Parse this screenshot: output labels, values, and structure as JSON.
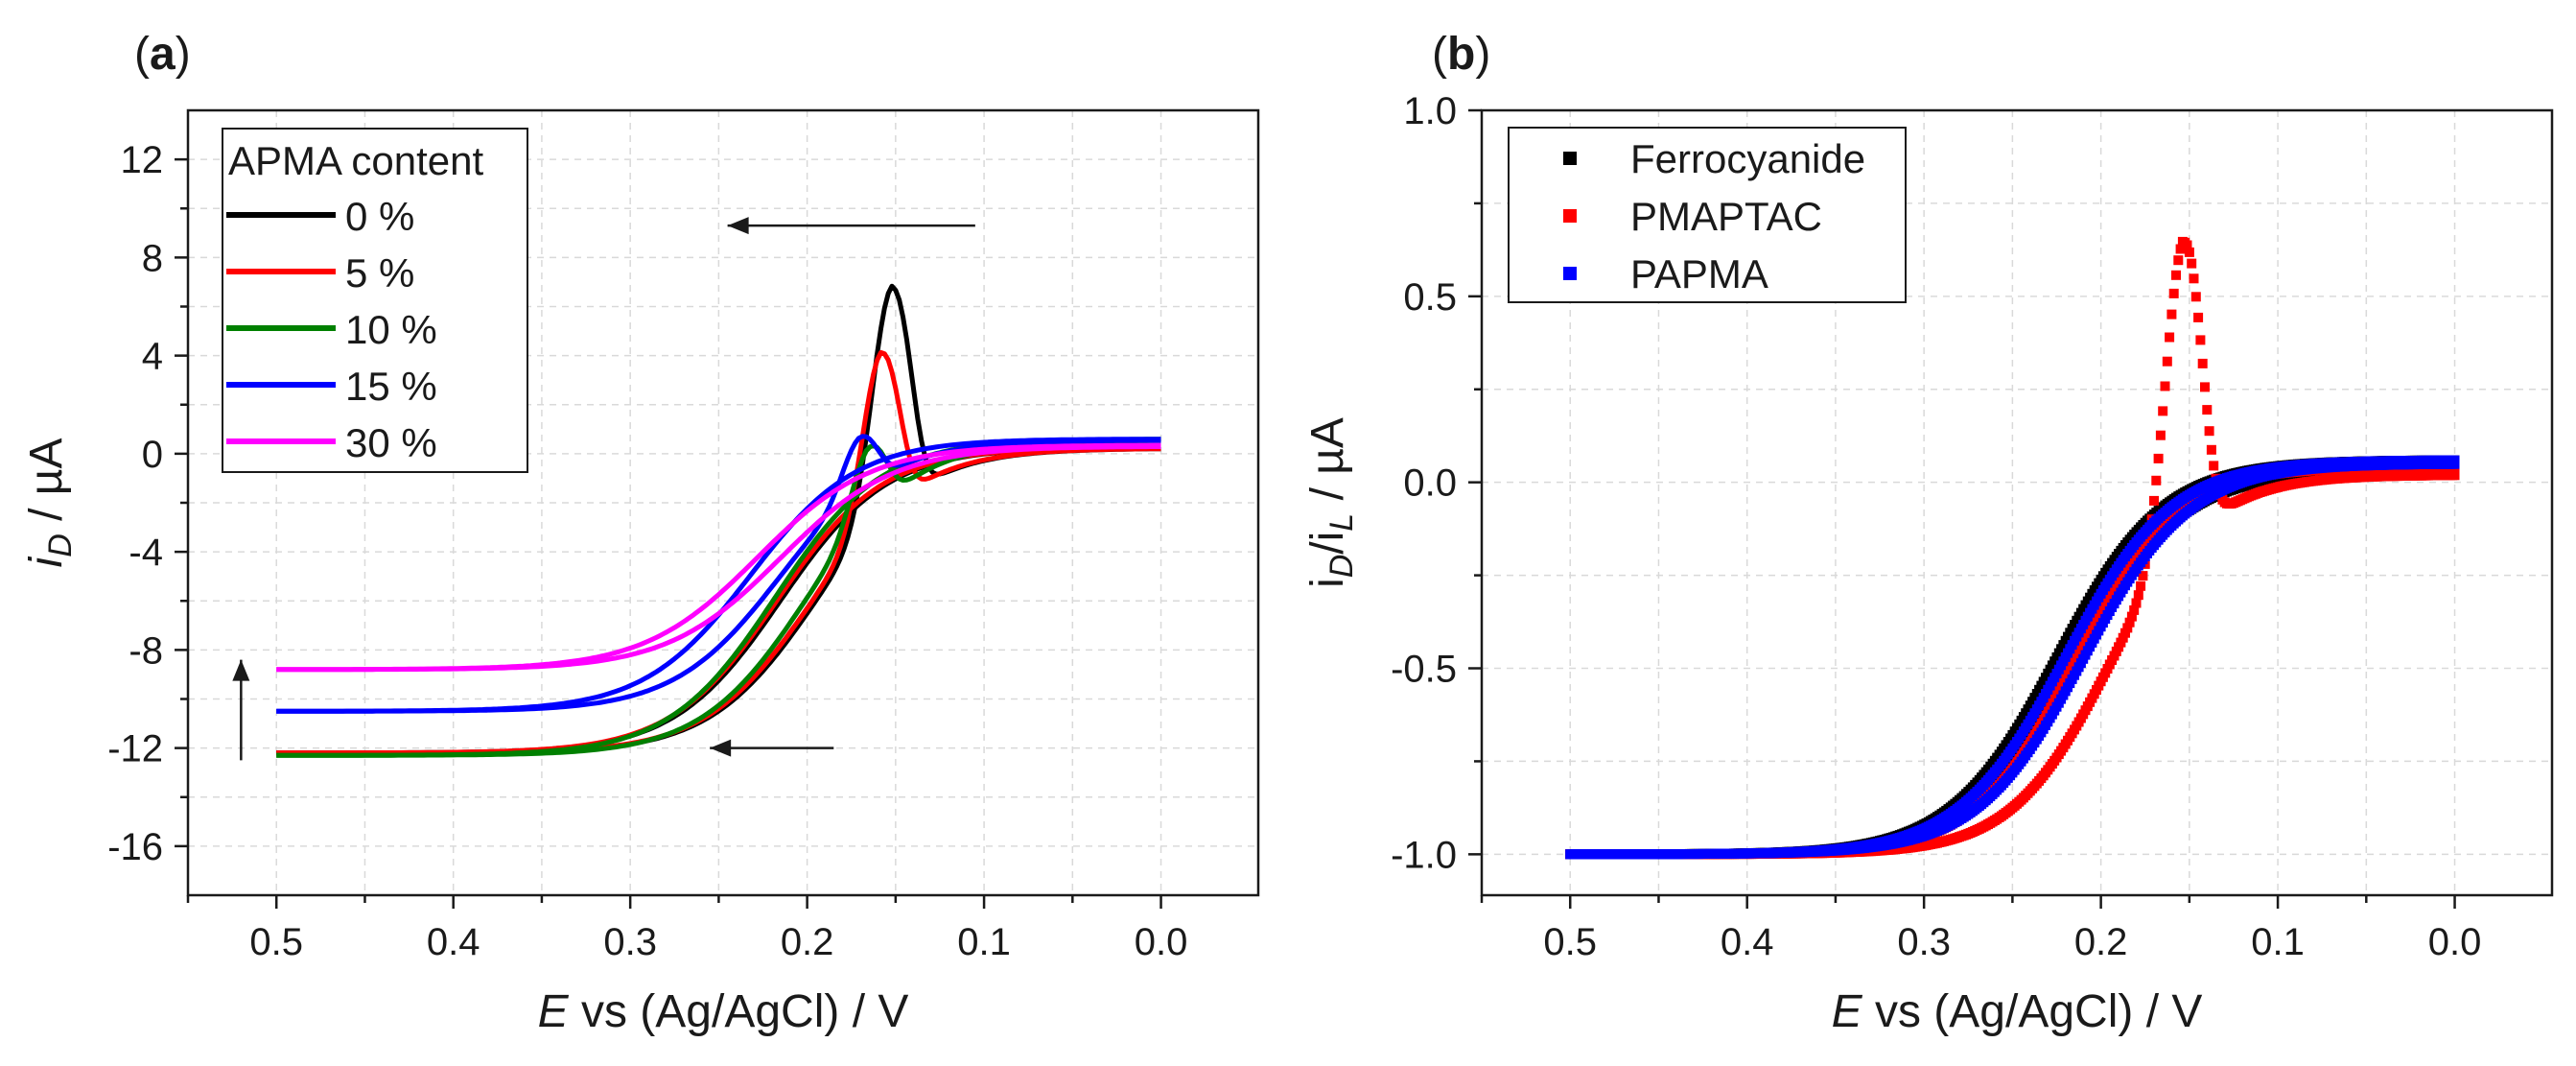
{
  "chart_data": [
    {
      "type": "line",
      "panel_label": "a",
      "xlabel_italic": "E",
      "xlabel_rest": " vs (Ag/AgCl) / V",
      "ylabel_main": "i",
      "ylabel_sub": "D",
      "ylabel_rest": " / µA",
      "xlim": [
        0.55,
        -0.055
      ],
      "ylim": [
        -18,
        14
      ],
      "x_ticks": [
        0.5,
        0.4,
        0.3,
        0.2,
        0.1,
        0.0
      ],
      "x_tick_labels": [
        "0.5",
        "0.4",
        "0.3",
        "0.2",
        "0.1",
        "0.0"
      ],
      "y_ticks": [
        12,
        8,
        4,
        0,
        -4,
        -8,
        -12,
        -16
      ],
      "y_tick_labels": [
        "12",
        "8",
        "4",
        "0",
        "-4",
        "-8",
        "-12",
        "-16"
      ],
      "grid": true,
      "legend_title": "APMA content",
      "legend_position": "top-left",
      "series": [
        {
          "name": "0 %",
          "color": "#000000",
          "plateau": -12.2,
          "e_half": 0.195,
          "k": 0.03,
          "e_half_rev": 0.215,
          "k_rev": 0.03,
          "peak_height": 8.8,
          "peak_e": 0.152,
          "peak_w": 0.016,
          "end": 0.22,
          "end_rev": 0.25
        },
        {
          "name": "5 %",
          "color": "#ff0000",
          "plateau": -12.2,
          "e_half": 0.197,
          "k": 0.03,
          "e_half_rev": 0.217,
          "k_rev": 0.03,
          "peak_height": 6.5,
          "peak_e": 0.158,
          "peak_w": 0.015,
          "end": 0.22,
          "end_rev": 0.25
        },
        {
          "name": "10 %",
          "color": "#008000",
          "plateau": -12.3,
          "e_half": 0.2,
          "k": 0.03,
          "e_half_rev": 0.218,
          "k_rev": 0.03,
          "peak_height": 3.2,
          "peak_e": 0.165,
          "peak_w": 0.014,
          "end": 0.55,
          "end_rev": 0.6
        },
        {
          "name": "15 %",
          "color": "#0000ff",
          "plateau": -10.5,
          "e_half": 0.215,
          "k": 0.03,
          "e_half_rev": 0.232,
          "k_rev": 0.03,
          "peak_height": 2.6,
          "peak_e": 0.17,
          "peak_w": 0.014,
          "end": 0.55,
          "end_rev": 0.6
        },
        {
          "name": "30 %",
          "color": "#ff00ff",
          "plateau": -8.8,
          "e_half": 0.215,
          "k": 0.032,
          "e_half_rev": 0.228,
          "k_rev": 0.032,
          "peak_height": 0.0,
          "peak_e": 0.15,
          "peak_w": 0.015,
          "end": 0.3,
          "end_rev": 0.35
        }
      ],
      "annotations": [
        {
          "type": "arrow",
          "from": [
            0.105,
            9.3
          ],
          "to": [
            0.245,
            9.3
          ]
        },
        {
          "type": "arrow",
          "from": [
            0.185,
            -12.0
          ],
          "to": [
            0.255,
            -12.0
          ]
        },
        {
          "type": "arrow",
          "from": [
            0.52,
            -12.5
          ],
          "to": [
            0.52,
            -8.4
          ]
        }
      ]
    },
    {
      "type": "scatter",
      "panel_label": "b",
      "xlabel_italic": "E",
      "xlabel_rest": " vs (Ag/AgCl) / V",
      "ylabel_main": "i",
      "ylabel_sub": "D",
      "ylabel_mid": "/i",
      "ylabel_sub2": "L",
      "ylabel_rest": " / µA",
      "xlim": [
        0.55,
        -0.055
      ],
      "ylim": [
        -1.11,
        1.0
      ],
      "x_ticks": [
        0.5,
        0.4,
        0.3,
        0.2,
        0.1,
        0.0
      ],
      "x_tick_labels": [
        "0.5",
        "0.4",
        "0.3",
        "0.2",
        "0.1",
        "0.0"
      ],
      "y_ticks": [
        1.0,
        0.5,
        0.0,
        -0.5,
        -1.0
      ],
      "y_tick_labels": [
        "1.0",
        "0.5",
        "0.0",
        "-0.5",
        "-1.0"
      ],
      "grid": true,
      "legend_position": "top-left",
      "series": [
        {
          "name": "Ferrocyanide",
          "color": "#000000",
          "plateau": -1.0,
          "e_half": 0.215,
          "k": 0.03,
          "e_half_rev": 0.225,
          "k_rev": 0.03,
          "peak_height": 0.0,
          "peak_e": 0.15,
          "peak_w": 0.015,
          "end": 0.03,
          "end_rev": 0.06
        },
        {
          "name": "PMAPTAC",
          "color": "#ff0000",
          "plateau": -1.0,
          "e_half": 0.195,
          "k": 0.028,
          "e_half_rev": 0.215,
          "k_rev": 0.028,
          "peak_height": 0.8,
          "peak_e": 0.153,
          "peak_w": 0.015,
          "end": 0.02,
          "end_rev": 0.04
        },
        {
          "name": "PAPMA",
          "color": "#0000ff",
          "plateau": -1.0,
          "e_half": 0.21,
          "k": 0.03,
          "e_half_rev": 0.22,
          "k_rev": 0.03,
          "peak_height": 0.0,
          "peak_e": 0.15,
          "peak_w": 0.015,
          "end": 0.05,
          "end_rev": 0.06
        }
      ]
    }
  ]
}
